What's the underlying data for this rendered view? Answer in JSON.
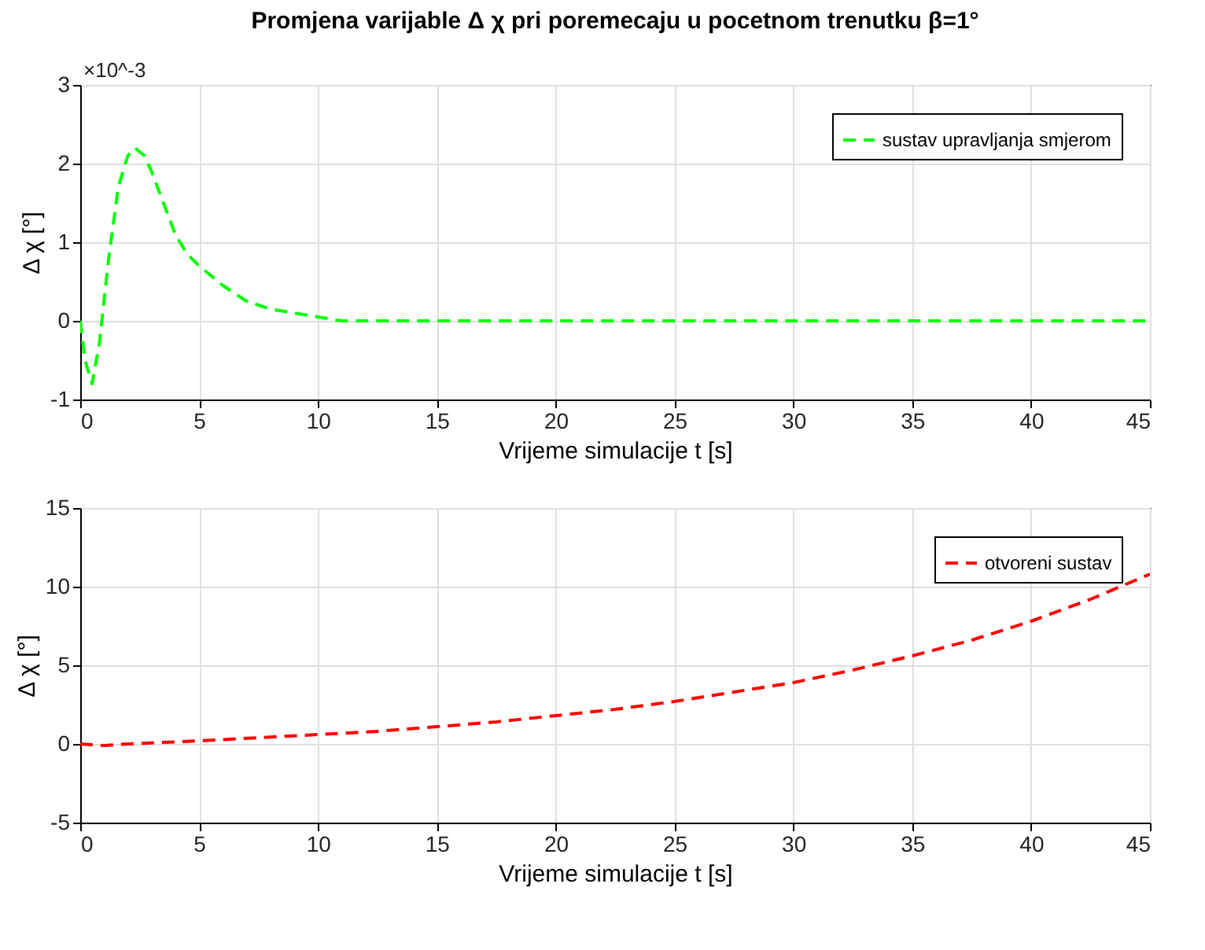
{
  "chart_data": [
    {
      "type": "line",
      "title": "Promjena varijable Δ χ  pri poremecaju u pocetnom trenutku β=1°",
      "xlabel": "Vrijeme simulacije t [s]",
      "ylabel": "Δ χ [°]",
      "annotations": [
        "×10^-3"
      ],
      "x": [
        0,
        0.2,
        0.5,
        0.8,
        1.2,
        1.6,
        2,
        2.3,
        2.7,
        3,
        3.5,
        4,
        4.5,
        5,
        6,
        7,
        8,
        9,
        10,
        11,
        12,
        14,
        20,
        30,
        45
      ],
      "series": [
        {
          "name": "sustav upravljanja smjerom",
          "color": "#00ff00",
          "values": [
            0,
            -0.5,
            -0.8,
            -0.3,
            0.8,
            1.7,
            2.1,
            2.2,
            2.1,
            1.9,
            1.5,
            1.1,
            0.85,
            0.7,
            0.45,
            0.25,
            0.15,
            0.1,
            0.05,
            0,
            0,
            0,
            0,
            0,
            0
          ]
        }
      ],
      "xlim": [
        0,
        45
      ],
      "xticks": [
        0,
        5,
        10,
        15,
        20,
        25,
        30,
        35,
        40,
        45
      ],
      "ylim": [
        -1,
        3
      ],
      "yticks": [
        -1,
        0,
        1,
        2,
        3
      ],
      "grid": true,
      "legend": "top right",
      "line_style": "dashed",
      "marker": "none"
    },
    {
      "type": "line",
      "xlabel": "Vrijeme simulacije t [s]",
      "ylabel": "Δ χ [°]",
      "x": [
        0,
        1,
        2,
        5,
        7.5,
        10,
        12.5,
        15,
        17.5,
        20,
        22.5,
        25,
        27.5,
        30,
        32.5,
        35,
        37.5,
        40,
        42.5,
        45
      ],
      "series": [
        {
          "name": "otvoreni sustav",
          "color": "#ff0000",
          "values": [
            0,
            -0.1,
            0,
            0.2,
            0.4,
            0.6,
            0.8,
            1.1,
            1.4,
            1.8,
            2.2,
            2.7,
            3.3,
            3.9,
            4.7,
            5.6,
            6.6,
            7.8,
            9.2,
            10.8
          ]
        }
      ],
      "xlim": [
        0,
        45
      ],
      "xticks": [
        0,
        5,
        10,
        15,
        20,
        25,
        30,
        35,
        40,
        45
      ],
      "ylim": [
        -5,
        15
      ],
      "yticks": [
        -5,
        0,
        5,
        10,
        15
      ],
      "grid": true,
      "legend": "top right",
      "line_style": "dashed",
      "marker": "none"
    }
  ]
}
